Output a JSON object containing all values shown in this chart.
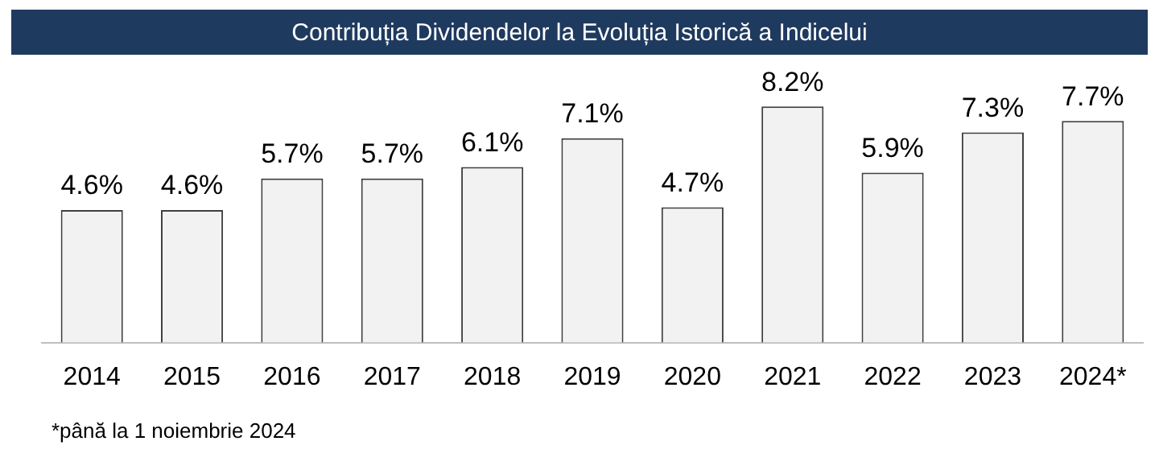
{
  "chart_data": {
    "type": "bar",
    "title": "Contribuția Dividendelor la Evoluția Istorică a Indicelui",
    "categories": [
      "2014",
      "2015",
      "2016",
      "2017",
      "2018",
      "2019",
      "2020",
      "2021",
      "2022",
      "2023",
      "2024*"
    ],
    "values": [
      4.6,
      4.6,
      5.7,
      5.7,
      6.1,
      7.1,
      4.7,
      8.2,
      5.9,
      7.3,
      7.7
    ],
    "value_labels": [
      "4.6%",
      "4.6%",
      "5.7%",
      "5.7%",
      "6.1%",
      "7.1%",
      "4.7%",
      "8.2%",
      "5.9%",
      "7.3%",
      "7.7%"
    ],
    "color": "#f2f2f2",
    "annotations": [
      "*până la 1 noiembrie 2024"
    ]
  }
}
